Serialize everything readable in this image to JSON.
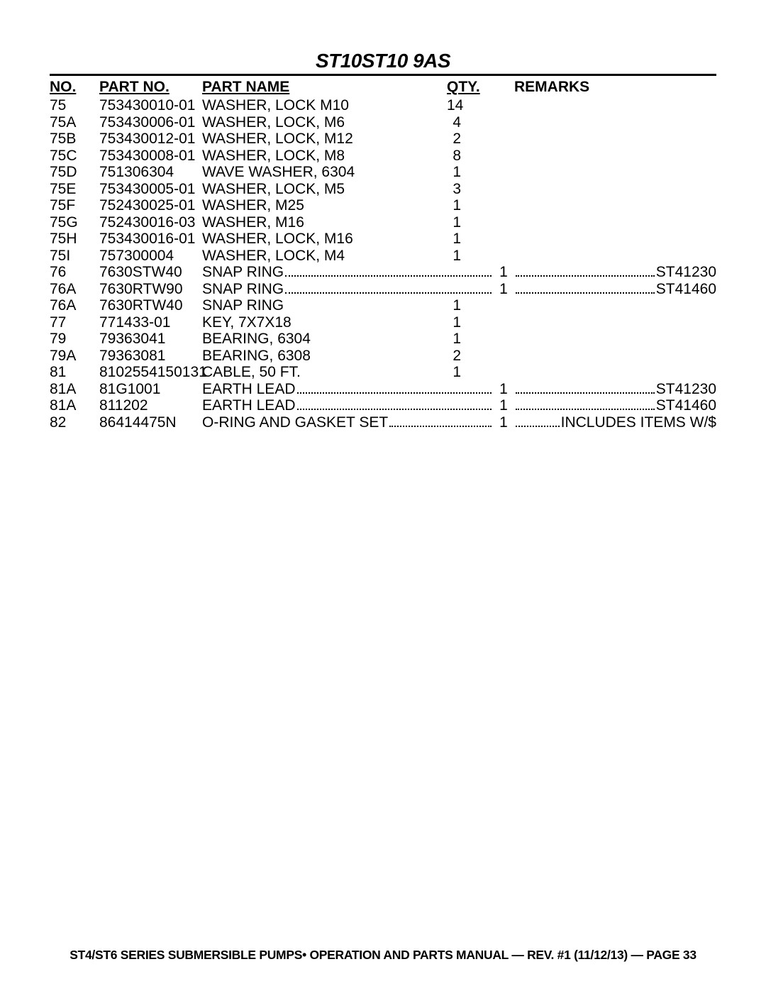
{
  "title": "ST10ST10 9AS",
  "headers": {
    "no": "NO.",
    "part_no": "PART NO.",
    "part_name": "PART NAME",
    "qty": "QTY.",
    "remarks": "REMARKS"
  },
  "rows": [
    {
      "no": "75",
      "partno": "753430010-01",
      "name": "WASHER, LOCK M10",
      "qty": "14",
      "leaders": false,
      "remarks": ""
    },
    {
      "no": "75A",
      "partno": "753430006-01",
      "name": "WASHER, LOCK, M6",
      "qty": "4",
      "leaders": false,
      "remarks": ""
    },
    {
      "no": "75B",
      "partno": "753430012-01",
      "name": "WASHER, LOCK, M12",
      "qty": "2",
      "leaders": false,
      "remarks": ""
    },
    {
      "no": "75C",
      "partno": "753430008-01",
      "name": "WASHER, LOCK, M8",
      "qty": "8",
      "leaders": false,
      "remarks": ""
    },
    {
      "no": "75D",
      "partno": "751306304",
      "name": "WAVE WASHER, 6304",
      "qty": "1",
      "leaders": false,
      "remarks": ""
    },
    {
      "no": "75E",
      "partno": "753430005-01",
      "name": "WASHER, LOCK, M5",
      "qty": "3",
      "leaders": false,
      "remarks": ""
    },
    {
      "no": "75F",
      "partno": "752430025-01",
      "name": "WASHER, M25",
      "qty": "1",
      "leaders": false,
      "remarks": ""
    },
    {
      "no": "75G",
      "partno": "752430016-03",
      "name": "WASHER, M16",
      "qty": "1",
      "leaders": false,
      "remarks": ""
    },
    {
      "no": "75H",
      "partno": "753430016-01",
      "name": "WASHER, LOCK, M16",
      "qty": "1",
      "leaders": false,
      "remarks": ""
    },
    {
      "no": "75I",
      "partno": "757300004",
      "name": "WASHER, LOCK, M4",
      "qty": "1",
      "leaders": false,
      "remarks": ""
    },
    {
      "no": "76",
      "partno": "7630STW40",
      "name": "SNAP RING",
      "qty": "1",
      "leaders": true,
      "remarks": "ST41230"
    },
    {
      "no": "76A",
      "partno": "7630RTW90",
      "name": "SNAP RING",
      "qty": "1",
      "leaders": true,
      "remarks": "ST41460"
    },
    {
      "no": "76A",
      "partno": "7630RTW40",
      "name": "SNAP RING",
      "qty": "1",
      "leaders": false,
      "remarks": ""
    },
    {
      "no": "77",
      "partno": "771433-01",
      "name": "KEY, 7X7X18",
      "qty": "1",
      "leaders": false,
      "remarks": ""
    },
    {
      "no": "79",
      "partno": "79363041",
      "name": "BEARING, 6304",
      "qty": "1",
      "leaders": false,
      "remarks": ""
    },
    {
      "no": "79A",
      "partno": "79363081",
      "name": "BEARING, 6308",
      "qty": "2",
      "leaders": false,
      "remarks": ""
    },
    {
      "no": "81",
      "partno": "8102554150131",
      "name": "CABLE, 50 FT.",
      "qty": "1",
      "leaders": false,
      "remarks": ""
    },
    {
      "no": "81A",
      "partno": "81G1001",
      "name": "EARTH LEAD",
      "qty": "1",
      "leaders": true,
      "remarks": "ST41230"
    },
    {
      "no": "81A",
      "partno": "811202",
      "name": "EARTH LEAD",
      "qty": "1",
      "leaders": true,
      "remarks": "ST41460"
    },
    {
      "no": "82",
      "partno": "86414475N",
      "name": "O-RING AND GASKET SET",
      "qty": "1",
      "leaders": true,
      "remarks": "INCLUDES ITEMS W/$"
    }
  ],
  "footer": "ST4/ST6 SERIES SUBMERSIBLE PUMPS• OPERATION AND PARTS MANUAL — REV. #1 (11/12/13) — PAGE 33"
}
